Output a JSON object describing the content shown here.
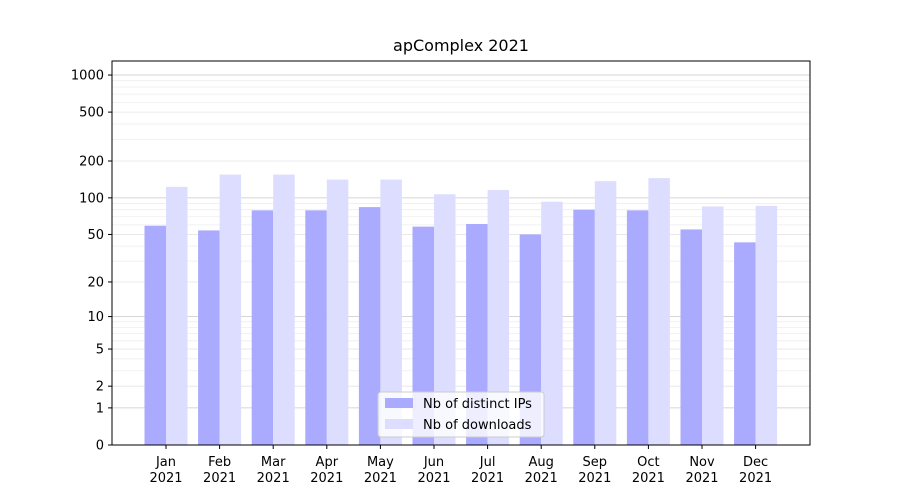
{
  "chart_data": {
    "type": "bar",
    "title": "apComplex 2021",
    "xlabel": "",
    "ylabel": "",
    "yscale": "symlog",
    "ylim": [
      0,
      1300
    ],
    "yticks": [
      0,
      1,
      2,
      5,
      10,
      20,
      50,
      100,
      200,
      500,
      1000
    ],
    "ytick_labels": [
      "0",
      "1",
      "2",
      "5",
      "10",
      "20",
      "50",
      "100",
      "200",
      "500",
      "1000"
    ],
    "categories": [
      "Jan\n2021",
      "Feb\n2021",
      "Mar\n2021",
      "Apr\n2021",
      "May\n2021",
      "Jun\n2021",
      "Jul\n2021",
      "Aug\n2021",
      "Sep\n2021",
      "Oct\n2021",
      "Nov\n2021",
      "Dec\n2021"
    ],
    "series": [
      {
        "name": "Nb of distinct IPs",
        "color": "#aaaaff",
        "values": [
          59,
          54,
          79,
          79,
          84,
          58,
          61,
          50,
          80,
          79,
          55,
          43
        ]
      },
      {
        "name": "Nb of downloads",
        "color": "#ddddff",
        "values": [
          123,
          155,
          155,
          141,
          141,
          107,
          116,
          93,
          137,
          145,
          85,
          86
        ]
      }
    ],
    "grid": true,
    "legend": "lower center"
  }
}
